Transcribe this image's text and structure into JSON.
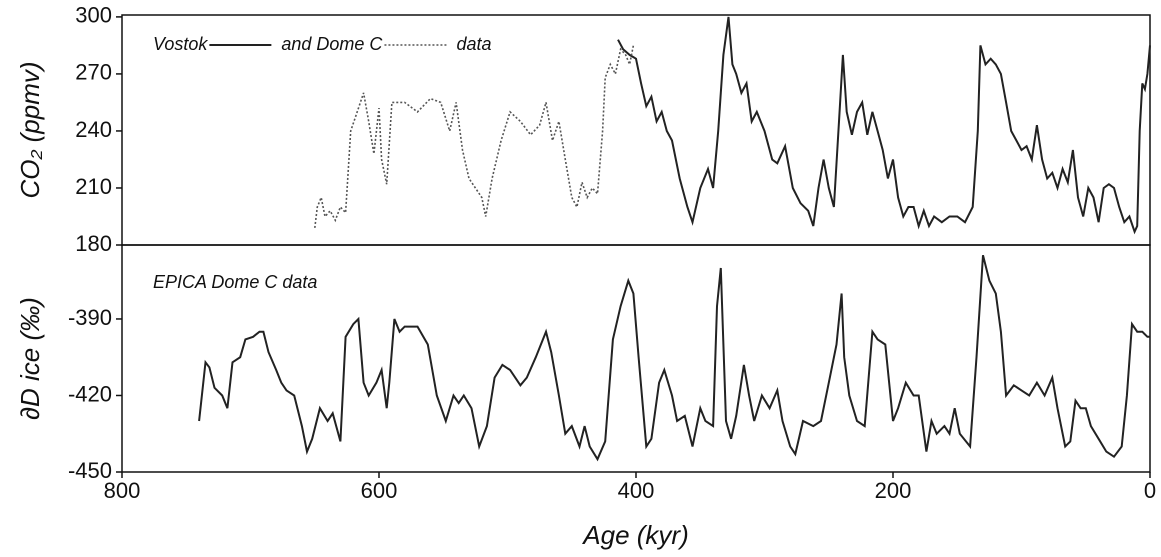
{
  "chart_data": [
    {
      "type": "line",
      "ylabel": "CO₂ (ppmv)",
      "xlim": [
        800,
        0
      ],
      "ylim": [
        180,
        301
      ],
      "yticks": [
        180,
        210,
        240,
        270,
        300
      ],
      "legend_suffix": "data",
      "series": [
        {
          "name": "Vostok",
          "color": "#222222",
          "dash": "solid",
          "x": [
            414,
            410,
            405,
            400,
            396,
            392,
            388,
            384,
            380,
            376,
            372,
            366,
            360,
            356,
            350,
            344,
            340,
            336,
            332,
            328,
            325,
            322,
            318,
            314,
            310,
            306,
            300,
            294,
            290,
            284,
            278,
            272,
            266,
            262,
            258,
            254,
            250,
            246,
            242,
            239,
            236,
            232,
            228,
            224,
            220,
            216,
            212,
            208,
            204,
            200,
            196,
            192,
            188,
            184,
            180,
            176,
            172,
            168,
            162,
            156,
            150,
            144,
            138,
            134,
            132,
            128,
            124,
            120,
            116,
            112,
            108,
            104,
            100,
            96,
            92,
            88,
            84,
            80,
            76,
            72,
            68,
            64,
            60,
            56,
            52,
            48,
            44,
            40,
            36,
            32,
            28,
            24,
            20,
            16,
            12,
            10,
            8,
            6,
            4,
            2,
            0
          ],
          "values": [
            288,
            283,
            280,
            278,
            265,
            253,
            258,
            245,
            250,
            240,
            235,
            215,
            200,
            192,
            210,
            220,
            210,
            240,
            280,
            300,
            275,
            270,
            260,
            265,
            245,
            250,
            240,
            225,
            223,
            232,
            210,
            202,
            198,
            190,
            210,
            225,
            210,
            200,
            245,
            280,
            250,
            238,
            250,
            255,
            238,
            250,
            240,
            230,
            215,
            225,
            205,
            195,
            200,
            200,
            190,
            198,
            190,
            195,
            192,
            195,
            195,
            192,
            200,
            240,
            285,
            275,
            278,
            275,
            270,
            255,
            240,
            235,
            230,
            232,
            225,
            243,
            225,
            215,
            218,
            210,
            220,
            213,
            230,
            205,
            195,
            210,
            205,
            192,
            210,
            212,
            210,
            200,
            192,
            195,
            187,
            190,
            240,
            265,
            262,
            270,
            285
          ]
        },
        {
          "name": "and Dome C",
          "color": "#555555",
          "dash": "dotted",
          "x": [
            650,
            648,
            645,
            642,
            638,
            634,
            630,
            626,
            622,
            618,
            612,
            608,
            604,
            600,
            598,
            594,
            590,
            580,
            570,
            560,
            552,
            545,
            540,
            535,
            530,
            525,
            520,
            517,
            512,
            505,
            498,
            490,
            482,
            475,
            470,
            465,
            460,
            455,
            450,
            446,
            442,
            438,
            434,
            430,
            426,
            424,
            420,
            416,
            412,
            408,
            405,
            402
          ],
          "values": [
            189,
            200,
            205,
            195,
            198,
            193,
            200,
            197,
            240,
            248,
            260,
            245,
            228,
            252,
            225,
            212,
            255,
            255,
            250,
            257,
            255,
            240,
            255,
            230,
            215,
            210,
            205,
            195,
            215,
            235,
            250,
            245,
            238,
            243,
            255,
            235,
            245,
            225,
            205,
            200,
            213,
            205,
            210,
            207,
            240,
            268,
            275,
            270,
            283,
            280,
            275,
            285
          ]
        }
      ]
    },
    {
      "type": "line",
      "ylabel": "∂D ice (‰)",
      "xlabel": "Age (kyr)",
      "annotation": "EPICA Dome C data",
      "xlim": [
        800,
        0
      ],
      "ylim": [
        -450,
        -361
      ],
      "xticks": [
        800,
        600,
        400,
        200,
        0
      ],
      "yticks": [
        -450,
        -420,
        -390
      ],
      "series": [
        {
          "color": "#222222",
          "dash": "solid",
          "x": [
            740,
            735,
            732,
            728,
            722,
            718,
            714,
            708,
            704,
            698,
            693,
            690,
            686,
            680,
            676,
            672,
            666,
            660,
            656,
            652,
            646,
            640,
            636,
            630,
            626,
            620,
            616,
            612,
            608,
            602,
            598,
            594,
            592,
            588,
            584,
            580,
            570,
            562,
            555,
            548,
            542,
            538,
            534,
            528,
            522,
            516,
            510,
            504,
            498,
            490,
            485,
            478,
            470,
            466,
            460,
            455,
            450,
            444,
            440,
            436,
            430,
            424,
            418,
            412,
            406,
            402,
            398,
            392,
            388,
            382,
            378,
            372,
            368,
            362,
            356,
            350,
            346,
            340,
            337,
            334,
            330,
            326,
            322,
            316,
            312,
            308,
            302,
            296,
            290,
            286,
            280,
            276,
            270,
            262,
            256,
            250,
            244,
            240,
            238,
            234,
            228,
            222,
            216,
            212,
            206,
            200,
            196,
            190,
            184,
            180,
            174,
            170,
            166,
            160,
            156,
            152,
            148,
            140,
            135,
            130,
            125,
            120,
            116,
            112,
            106,
            100,
            94,
            88,
            82,
            76,
            72,
            66,
            62,
            58,
            54,
            50,
            46,
            40,
            34,
            28,
            22,
            18,
            14,
            10,
            6,
            2,
            0
          ],
          "values": [
            -430,
            -407,
            -409,
            -417,
            -420,
            -425,
            -407,
            -405,
            -398,
            -397,
            -395,
            -395,
            -403,
            -410,
            -415,
            -418,
            -420,
            -432,
            -442,
            -437,
            -425,
            -430,
            -427,
            -438,
            -397,
            -392,
            -390,
            -415,
            -420,
            -415,
            -410,
            -425,
            -415,
            -390,
            -395,
            -393,
            -393,
            -400,
            -420,
            -430,
            -420,
            -423,
            -420,
            -425,
            -440,
            -432,
            -413,
            -408,
            -410,
            -416,
            -413,
            -405,
            -395,
            -403,
            -420,
            -435,
            -432,
            -440,
            -432,
            -440,
            -445,
            -438,
            -398,
            -385,
            -375,
            -380,
            -405,
            -440,
            -437,
            -415,
            -410,
            -420,
            -430,
            -428,
            -440,
            -425,
            -430,
            -432,
            -385,
            -370,
            -430,
            -437,
            -428,
            -408,
            -420,
            -430,
            -420,
            -425,
            -418,
            -430,
            -440,
            -443,
            -430,
            -432,
            -430,
            -415,
            -400,
            -380,
            -405,
            -420,
            -430,
            -432,
            -395,
            -398,
            -400,
            -430,
            -425,
            -415,
            -420,
            -420,
            -442,
            -430,
            -435,
            -432,
            -435,
            -425,
            -435,
            -440,
            -405,
            -365,
            -375,
            -380,
            -395,
            -420,
            -416,
            -418,
            -420,
            -415,
            -420,
            -413,
            -425,
            -440,
            -438,
            -422,
            -425,
            -425,
            -432,
            -437,
            -442,
            -444,
            -440,
            -420,
            -392,
            -395,
            -395,
            -397,
            -397
          ]
        }
      ]
    }
  ]
}
